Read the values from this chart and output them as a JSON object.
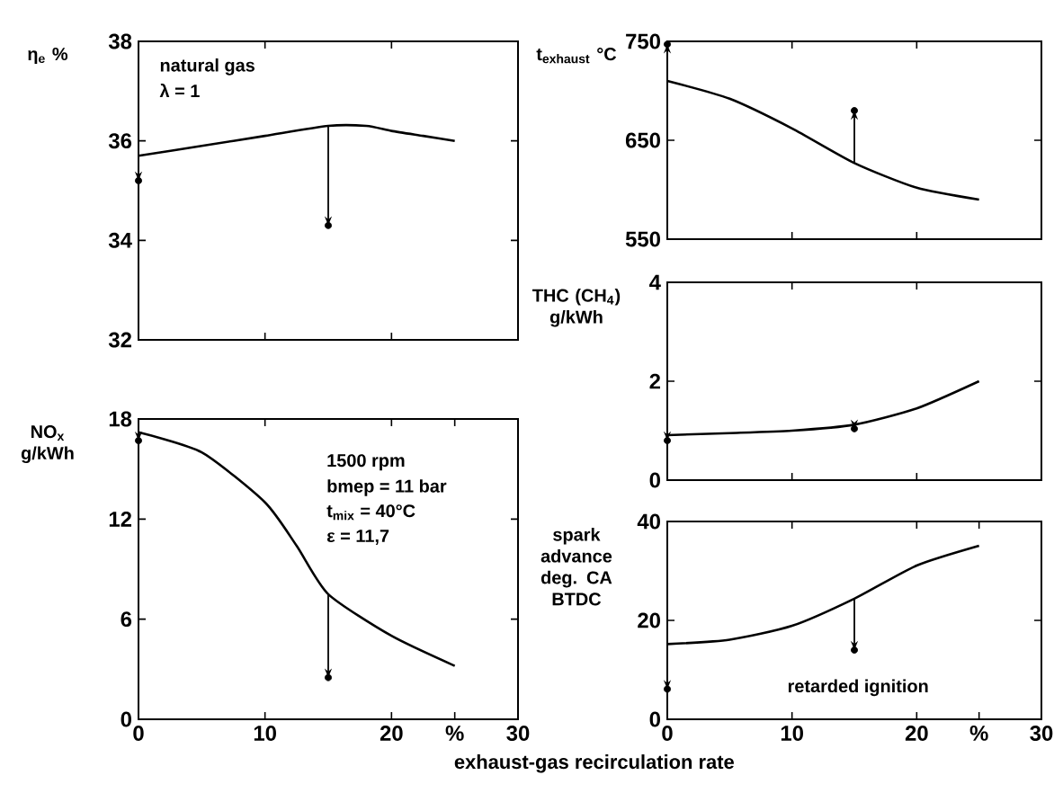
{
  "chart_data": [
    {
      "type": "line",
      "ylabel": "η$_{e}$ %",
      "xlim": [
        0,
        30
      ],
      "ylim": [
        32,
        38
      ],
      "xticks": [
        0,
        10,
        20,
        30
      ],
      "yticks": [
        32,
        34,
        36,
        38
      ],
      "tick_labels": "y",
      "annotations": [
        "natural gas",
        "λ = 1"
      ],
      "series": [
        {
          "color": "#000000",
          "x": [
            0,
            5,
            10,
            15,
            18,
            20,
            22.5,
            25
          ],
          "values": [
            35.7,
            35.9,
            36.1,
            36.3,
            36.3,
            36.2,
            36.1,
            36.0
          ]
        },
        {
          "type": "scatter",
          "color": "#000000",
          "marker": "circle",
          "x": [
            0,
            15
          ],
          "values": [
            35.2,
            34.3
          ]
        }
      ]
    },
    {
      "type": "line",
      "ylabel": "t$_{exhaust}$ °C",
      "xlim": [
        0,
        30
      ],
      "ylim": [
        550,
        750
      ],
      "xticks": [
        0,
        10,
        20,
        30
      ],
      "yticks": [
        550,
        650,
        750
      ],
      "tick_labels": "y",
      "series": [
        {
          "color": "#000000",
          "x": [
            0,
            5,
            10,
            15,
            20,
            25
          ],
          "values": [
            710,
            692,
            662,
            627,
            602,
            590
          ]
        },
        {
          "type": "scatter",
          "color": "#000000",
          "marker": "circle",
          "x": [
            0,
            15
          ],
          "values": [
            747,
            680
          ]
        }
      ]
    },
    {
      "type": "line",
      "ylabel": "THC (CH$_{4}$) g/kWh",
      "xlim": [
        0,
        30
      ],
      "ylim": [
        0,
        4
      ],
      "xticks": [
        0,
        10,
        20,
        30
      ],
      "yticks": [
        0,
        2,
        4
      ],
      "tick_labels": "y",
      "series": [
        {
          "color": "#000000",
          "x": [
            0,
            5,
            10,
            15,
            20,
            25
          ],
          "values": [
            0.91,
            0.95,
            1.0,
            1.12,
            1.45,
            2.0
          ]
        },
        {
          "type": "scatter",
          "color": "#000000",
          "marker": "circle",
          "x": [
            0,
            15
          ],
          "values": [
            0.8,
            1.04
          ]
        }
      ]
    },
    {
      "type": "line",
      "ylabel": "NO$_{x}$ g/kWh",
      "xlabel": "exhaust-gas recirculation rate",
      "xlim": [
        0,
        30
      ],
      "ylim": [
        0,
        18
      ],
      "xticks": [
        0,
        10,
        20,
        {
          "value": 25,
          "label": "%"
        },
        30
      ],
      "yticks": [
        0,
        6,
        12,
        18
      ],
      "annotations": [
        "1500 rpm",
        "bmep = 11 bar",
        "t$_{mix}$ = 40°C",
        "ε = 11,7"
      ],
      "series": [
        {
          "color": "#000000",
          "x": [
            0,
            5,
            10,
            12.5,
            15,
            20,
            25
          ],
          "values": [
            17.2,
            16.0,
            13.0,
            10.4,
            7.5,
            5.0,
            3.2
          ]
        },
        {
          "type": "scatter",
          "color": "#000000",
          "marker": "circle",
          "x": [
            0,
            15
          ],
          "values": [
            16.7,
            2.5
          ]
        }
      ]
    },
    {
      "type": "line",
      "ylabel": "spark advance deg. CA BTDC",
      "xlim": [
        0,
        30
      ],
      "ylim": [
        0,
        40
      ],
      "xticks": [
        0,
        10,
        20,
        {
          "value": 25,
          "label": "%"
        },
        30
      ],
      "yticks": [
        0,
        20,
        40
      ],
      "annotations": [
        "retarded ignition"
      ],
      "series": [
        {
          "color": "#000000",
          "x": [
            0,
            5,
            10,
            15,
            20,
            25
          ],
          "values": [
            15.2,
            16.1,
            18.9,
            24.4,
            31.1,
            35.1
          ]
        },
        {
          "type": "scatter",
          "color": "#000000",
          "marker": "circle",
          "x": [
            0,
            15
          ],
          "values": [
            6.1,
            14
          ]
        }
      ]
    }
  ]
}
